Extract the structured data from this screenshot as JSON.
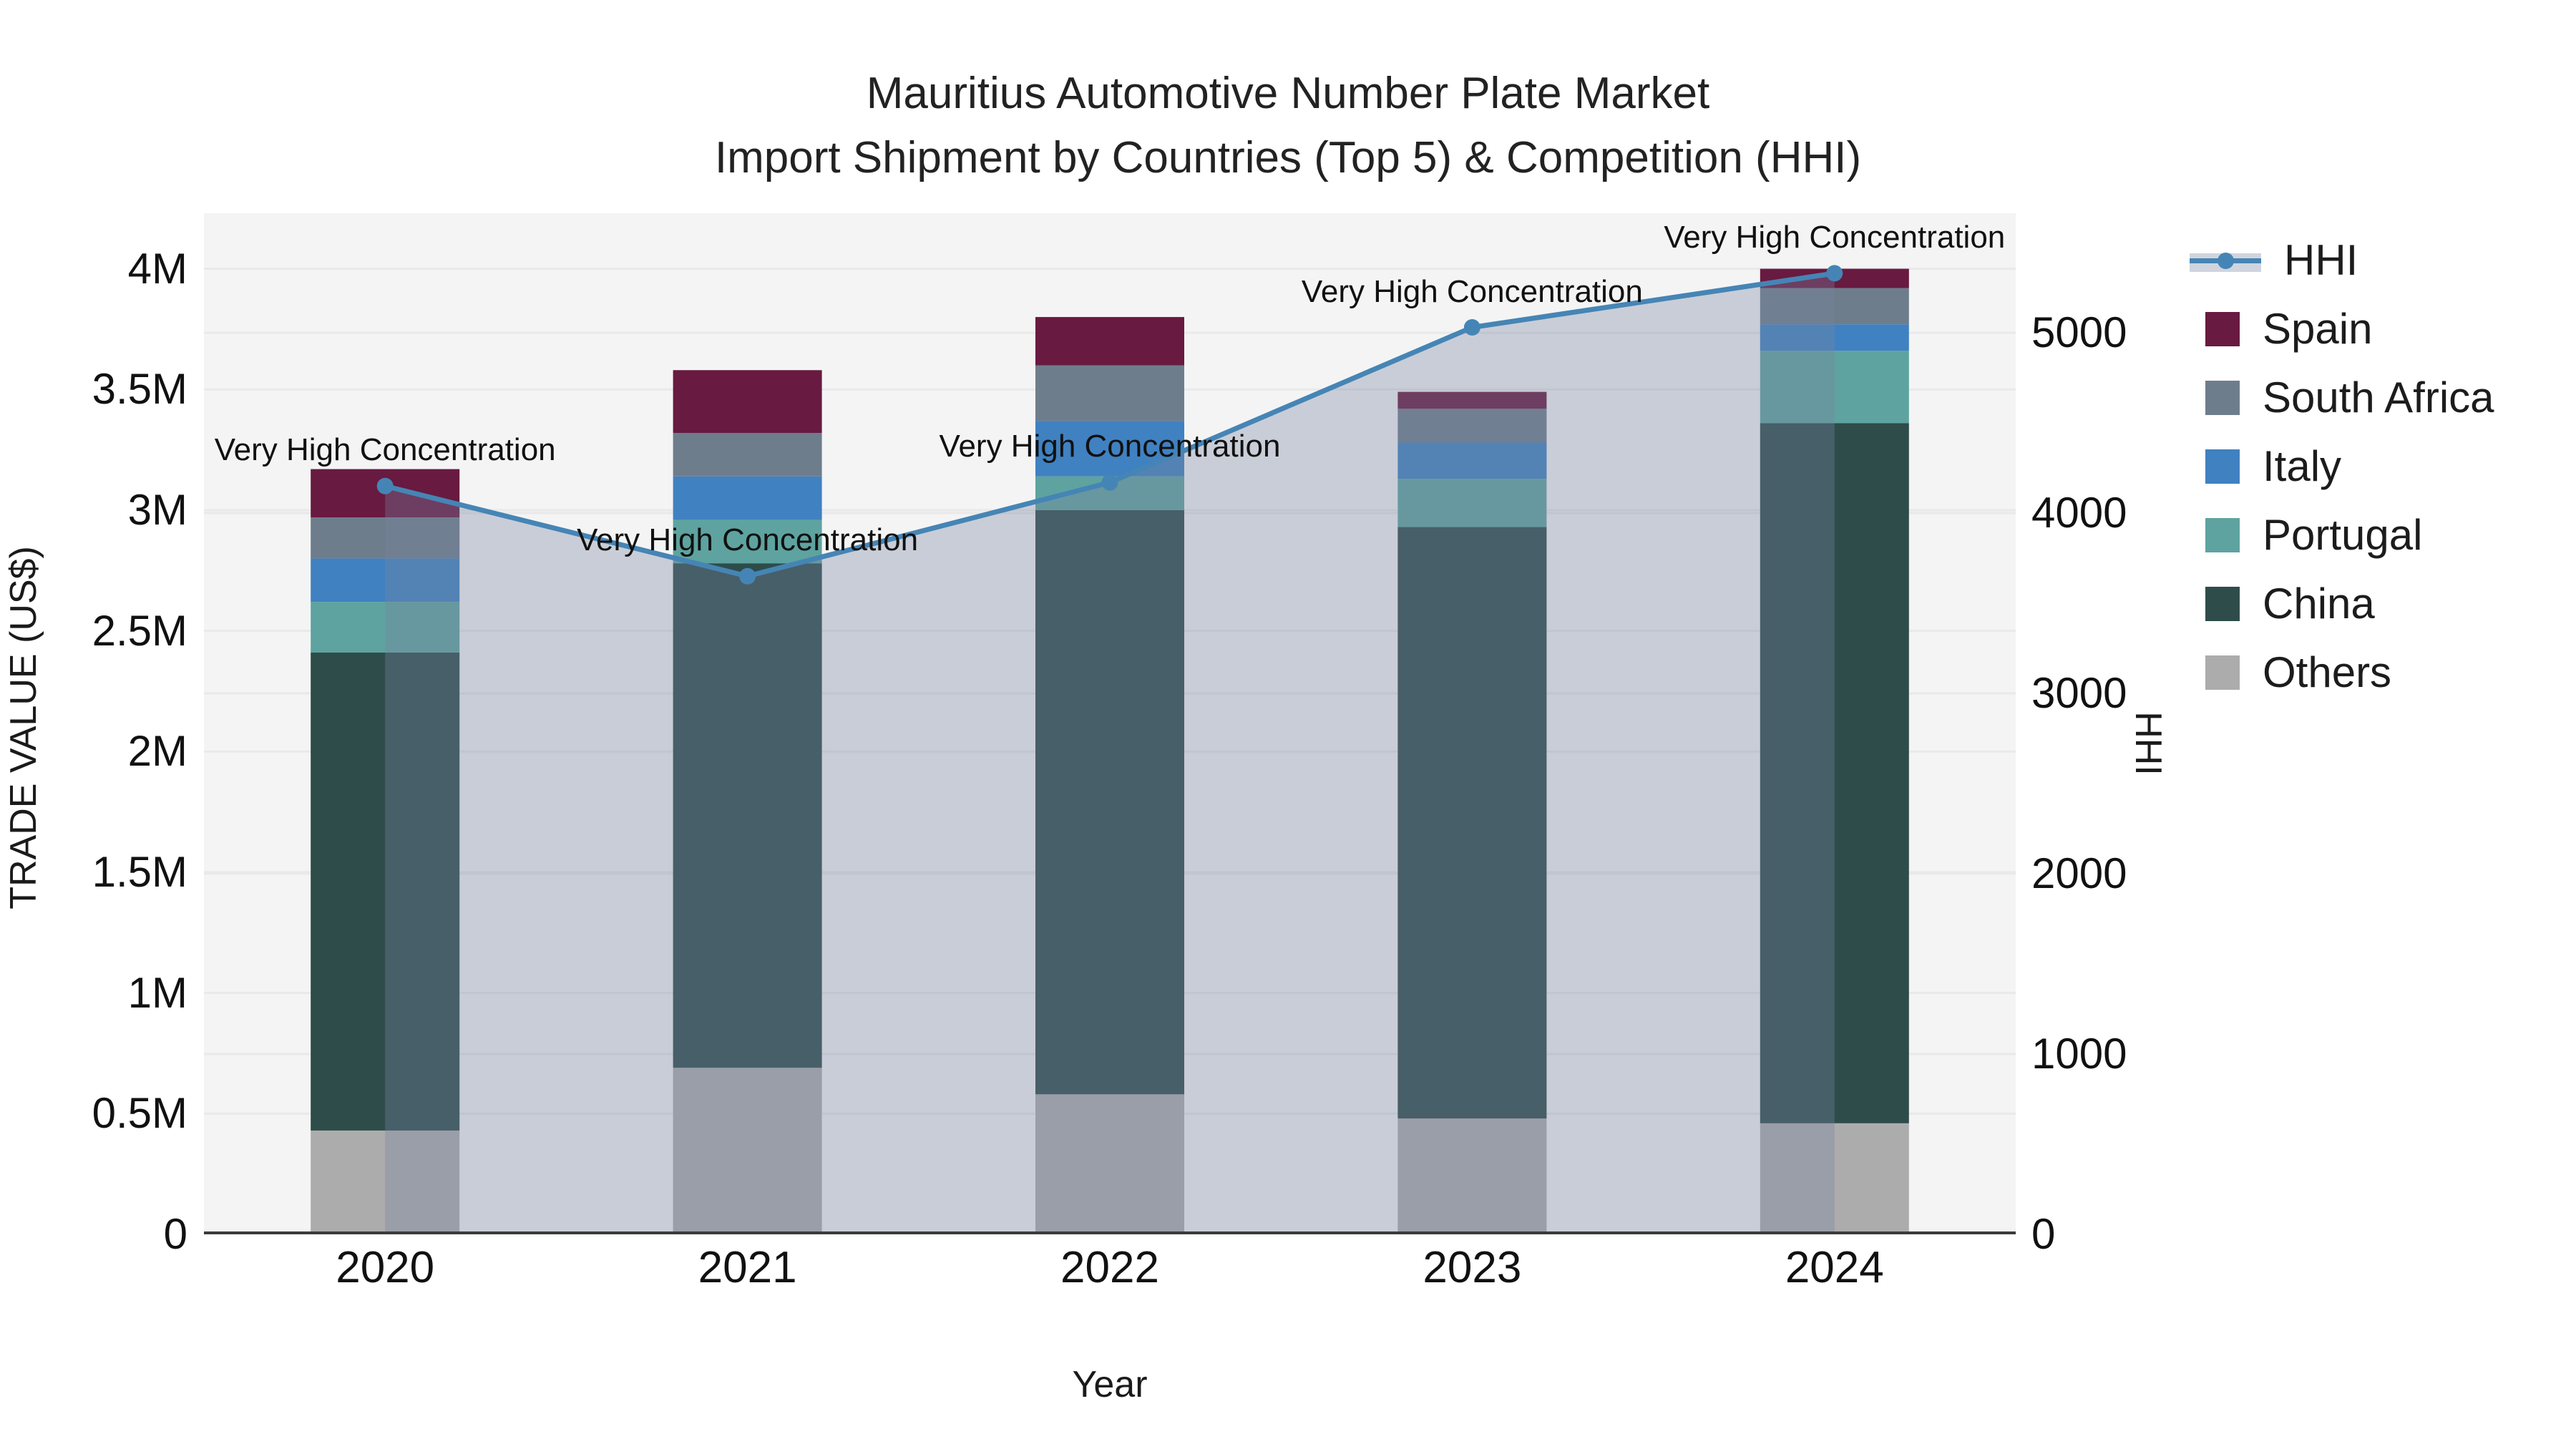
{
  "title": {
    "line1": "Mauritius Automotive Number Plate Market",
    "line2": "Import Shipment by Countries (Top 5) & Competition (HHI)"
  },
  "axes": {
    "y_left": {
      "title": "TRADE VALUE (US$)",
      "ticks": [
        {
          "value": 0,
          "label": "0"
        },
        {
          "value": 0.5,
          "label": "0.5M"
        },
        {
          "value": 1,
          "label": "1M"
        },
        {
          "value": 1.5,
          "label": "1.5M"
        },
        {
          "value": 2,
          "label": "2M"
        },
        {
          "value": 2.5,
          "label": "2.5M"
        },
        {
          "value": 3,
          "label": "3M"
        },
        {
          "value": 3.5,
          "label": "3.5M"
        },
        {
          "value": 4,
          "label": "4M"
        }
      ],
      "range": [
        0,
        4.23
      ]
    },
    "y_right": {
      "title": "HHI",
      "ticks": [
        {
          "value": 0,
          "label": "0"
        },
        {
          "value": 1000,
          "label": "1000"
        },
        {
          "value": 2000,
          "label": "2000"
        },
        {
          "value": 3000,
          "label": "3000"
        },
        {
          "value": 4000,
          "label": "4000"
        },
        {
          "value": 5000,
          "label": "5000"
        }
      ],
      "range": [
        0,
        5663
      ]
    },
    "x": {
      "title": "Year"
    }
  },
  "chart_data": {
    "type": "bar+line",
    "bar_mode": "stacked",
    "categories": [
      "2020",
      "2021",
      "2022",
      "2023",
      "2024"
    ],
    "value_unit": "million US$",
    "series": [
      {
        "name": "Others",
        "color_key": "others",
        "values": [
          0.43,
          0.69,
          0.58,
          0.48,
          0.46
        ]
      },
      {
        "name": "China",
        "color_key": "china",
        "values": [
          1.98,
          2.09,
          2.42,
          2.45,
          2.9
        ]
      },
      {
        "name": "Portugal",
        "color_key": "portugal",
        "values": [
          0.21,
          0.18,
          0.14,
          0.2,
          0.3
        ]
      },
      {
        "name": "Italy",
        "color_key": "italy",
        "values": [
          0.18,
          0.18,
          0.23,
          0.15,
          0.11
        ]
      },
      {
        "name": "South Africa",
        "color_key": "south_africa",
        "values": [
          0.17,
          0.18,
          0.23,
          0.14,
          0.15
        ]
      },
      {
        "name": "Spain",
        "color_key": "spain",
        "values": [
          0.2,
          0.26,
          0.2,
          0.07,
          0.08
        ]
      }
    ],
    "bar_totals": [
      3.17,
      3.58,
      3.8,
      3.49,
      4.0
    ],
    "line_series": {
      "name": "HHI",
      "axis": "right",
      "values": [
        4150,
        3650,
        4170,
        5030,
        5330
      ],
      "point_labels": [
        "Very High Concentration",
        "Very High Concentration",
        "Very High Concentration",
        "Very High Concentration",
        "Very High Concentration"
      ],
      "area_fill": true
    },
    "legend_position": "right",
    "grid": true
  },
  "legend": {
    "items": [
      {
        "label": "HHI",
        "swatch": "hhi"
      },
      {
        "label": "Spain",
        "swatch": "spain"
      },
      {
        "label": "South Africa",
        "swatch": "south_africa"
      },
      {
        "label": "Italy",
        "swatch": "italy"
      },
      {
        "label": "Portugal",
        "swatch": "portugal"
      },
      {
        "label": "China",
        "swatch": "china"
      },
      {
        "label": "Others",
        "swatch": "others"
      }
    ]
  },
  "colors": {
    "spain": "#681a40",
    "south_africa": "#6e7d8c",
    "italy": "#4081c1",
    "portugal": "#5ea3a0",
    "china": "#2d4c4a",
    "others": "#acacac",
    "hhi_line": "#4585b5",
    "area_fill": "rgba(120,132,160,0.35)",
    "plot_bg": "#f4f4f4",
    "grid": "#e9e9e9",
    "axis_line": "#3b3b3b",
    "text": "#1a1a1a"
  }
}
